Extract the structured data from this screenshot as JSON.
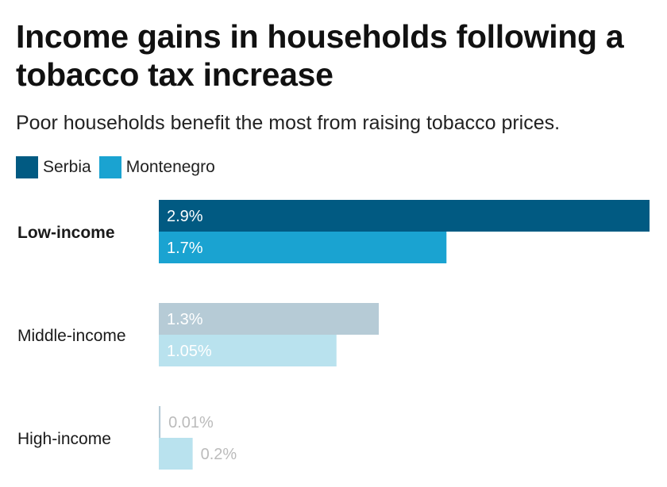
{
  "title": "Income gains in households following a tobacco tax increase",
  "subtitle": "Poor households benefit the most from raising tobacco prices.",
  "colors": {
    "serbia": "#015a82",
    "montenegro": "#1aa3d1",
    "serbia_muted": "#b6cbd6",
    "montenegro_muted": "#b9e2ee",
    "label_light": "#ffffff",
    "label_faint": "#bbbbbb"
  },
  "chart_data": {
    "type": "bar",
    "orientation": "horizontal",
    "title": "Income gains in households following a tobacco tax increase",
    "subtitle": "Poor households benefit the most from raising tobacco prices.",
    "categories": [
      "Low-income",
      "Middle-income",
      "High-income"
    ],
    "highlighted_category": "Low-income",
    "series": [
      {
        "name": "Serbia",
        "values": [
          2.9,
          1.3,
          0.01
        ],
        "labels": [
          "2.9%",
          "1.3%",
          "0.01%"
        ]
      },
      {
        "name": "Montenegro",
        "values": [
          1.7,
          1.05,
          0.2
        ],
        "labels": [
          "1.7%",
          "1.05%",
          "0.2%"
        ]
      }
    ],
    "xlim": [
      0,
      2.9
    ],
    "legend": "top-left",
    "grid": false,
    "xlabel": "",
    "ylabel": ""
  }
}
